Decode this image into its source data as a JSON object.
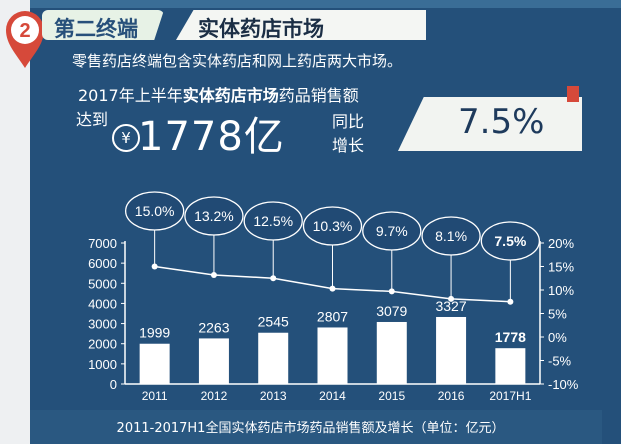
{
  "header": {
    "number": "2",
    "section_label": "第二终端",
    "section_title": "实体药店市场"
  },
  "intro": "零售药店终端包含实体药店和网上药店两大市场。",
  "headline": {
    "prefix": "2017年上半年",
    "bold": "实体药店市场",
    "suffix": "药品销售额",
    "reach": "达到",
    "currency": "¥",
    "amount": "1778亿",
    "tongbi": "同比",
    "zengzhang": "增长",
    "growth": "7.5%"
  },
  "colors": {
    "background": "#24507a",
    "bars": "#ffffff",
    "line": "#ffffff",
    "badge": "#d6493a"
  },
  "chart_data": {
    "type": "bar",
    "categories": [
      "2011",
      "2012",
      "2013",
      "2014",
      "2015",
      "2016",
      "2017H1"
    ],
    "series": [
      {
        "axis": "left",
        "type": "bar",
        "values": [
          1999,
          2263,
          2545,
          2807,
          3079,
          3327,
          1778
        ]
      },
      {
        "axis": "right",
        "type": "line",
        "values": [
          15.0,
          13.2,
          12.5,
          10.3,
          9.7,
          8.1,
          7.5
        ]
      }
    ],
    "bar_labels": [
      "1999",
      "2263",
      "2545",
      "2807",
      "3079",
      "3327",
      "1778"
    ],
    "line_labels": [
      "15.0%",
      "13.2%",
      "12.5%",
      "10.3%",
      "9.7%",
      "8.1%",
      "7.5%"
    ],
    "left_axis": {
      "ylim": [
        0,
        7000
      ],
      "ticks": [
        "0",
        "1000",
        "2000",
        "3000",
        "4000",
        "5000",
        "6000",
        "7000"
      ]
    },
    "right_axis": {
      "ylim": [
        -10,
        20
      ],
      "ticks": [
        "-10%",
        "-5%",
        "0%",
        "5%",
        "10%",
        "15%",
        "20%"
      ]
    },
    "caption": "2011-2017H1全国实体药店市场药品销售额及增长（单位：亿元）",
    "grid": false
  }
}
